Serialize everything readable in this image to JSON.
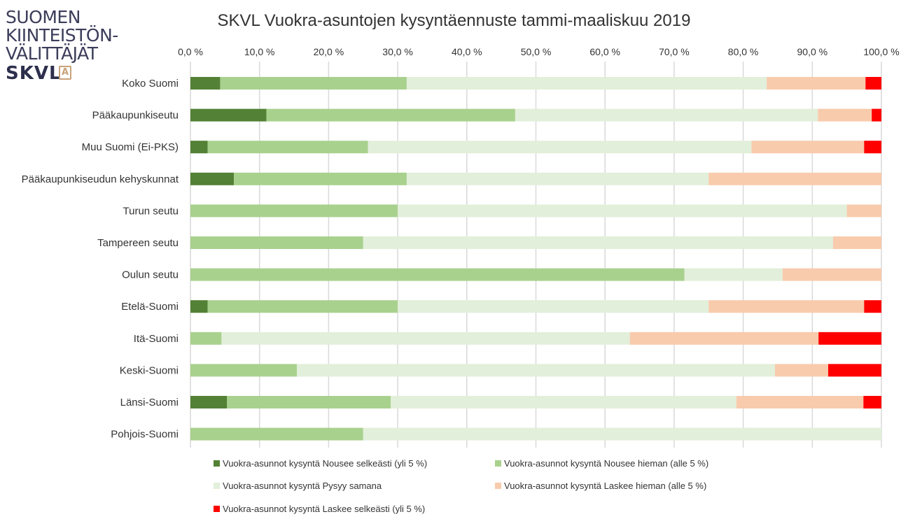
{
  "logo": {
    "line1": "SUOMEN",
    "line2": "KIINTEISTÖN-",
    "line3": "VÄLITTÄJÄT",
    "brand": "SKVL",
    "badge": "A"
  },
  "chart_data": {
    "type": "bar",
    "orientation": "horizontal",
    "stacked": "percent",
    "title": "SKVL Vuokra-asuntojen kysyntäennuste tammi-maaliskuu 2019",
    "xlim": [
      0,
      100
    ],
    "x_ticks": [
      "0,0 %",
      "10,0 %",
      "20,0 %",
      "30,0 %",
      "40,0 %",
      "50,0 %",
      "60,0 %",
      "70,0 %",
      "80,0 %",
      "90,0 %",
      "100,0 %"
    ],
    "x_axis_position": "top",
    "grid": true,
    "legend_position": "bottom",
    "categories": [
      "Koko Suomi",
      "Pääkaupunkiseutu",
      "Muu Suomi (Ei-PKS)",
      "Pääkaupunkiseudun kehyskunnat",
      "Turun seutu",
      "Tampereen seutu",
      "Oulun seutu",
      "Etelä-Suomi",
      "Itä-Suomi",
      "Keski-Suomi",
      "Länsi-Suomi",
      "Pohjois-Suomi"
    ],
    "series": [
      {
        "name": "Vuokra-asunnot kysyntä Nousee selkeästi (yli 5 %)",
        "color": "#538135",
        "values": [
          4.3,
          11.0,
          2.5,
          6.3,
          0,
          0,
          0,
          2.5,
          0,
          0,
          5.3,
          0
        ]
      },
      {
        "name": "Vuokra-asunnot kysyntä Nousee hieman (alle 5 %)",
        "color": "#a9d18e",
        "values": [
          27.0,
          36.0,
          23.2,
          25.0,
          30.0,
          25.0,
          71.5,
          27.5,
          4.5,
          15.4,
          23.7,
          25.0
        ]
      },
      {
        "name": "Vuokra-asunnot kysyntä Pysyy samana",
        "color": "#e2efda",
        "values": [
          52.1,
          43.8,
          55.5,
          43.7,
          65.0,
          68.0,
          14.2,
          45.0,
          59.1,
          69.2,
          50.0,
          75.0
        ]
      },
      {
        "name": "Vuokra-asunnot kysyntä Laskee hieman (alle 5 %)",
        "color": "#f8cbad",
        "values": [
          14.3,
          7.8,
          16.3,
          25.0,
          5.0,
          7.0,
          14.3,
          22.5,
          27.3,
          7.7,
          18.4,
          0
        ]
      },
      {
        "name": "Vuokra-asunnot kysyntä Laskee selkeästi (yli 5 %)",
        "color": "#ff0000",
        "values": [
          2.3,
          1.4,
          2.5,
          0,
          0,
          0,
          0,
          2.5,
          9.1,
          7.7,
          2.6,
          0
        ]
      }
    ]
  }
}
